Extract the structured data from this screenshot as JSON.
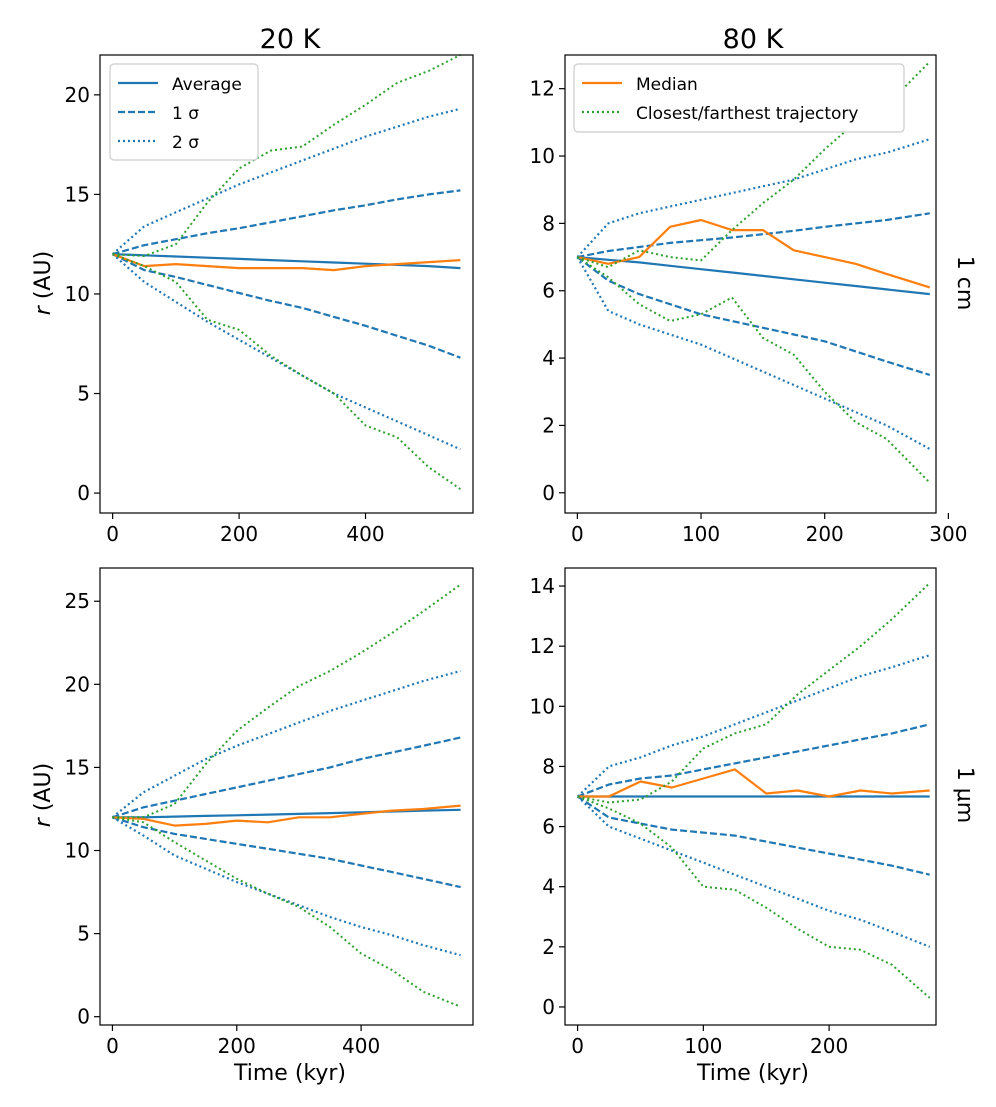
{
  "figure": {
    "column_titles": [
      "20 K",
      "80 K"
    ],
    "row_labels": [
      "1 cm",
      "1 μm"
    ],
    "xlabel": "Time (kyr)",
    "ylabel_prefix": "r",
    "ylabel_suffix": " (AU)"
  },
  "legends": {
    "left": [
      "Average",
      "1 σ",
      "2 σ"
    ],
    "right": [
      "Median",
      "Closest/farthest trajectory"
    ]
  },
  "colors": {
    "blue": "#1f77b4",
    "orange": "#ff7f0e",
    "green": "#2ca02c"
  },
  "chart_data": [
    {
      "type": "line",
      "panel": "20 K / 1 cm",
      "xlim": [
        -20,
        570
      ],
      "ylim": [
        -1,
        22
      ],
      "xticks": [
        0,
        200,
        400
      ],
      "yticks": [
        0,
        5,
        10,
        15,
        20
      ],
      "x": [
        0,
        50,
        100,
        150,
        200,
        250,
        300,
        350,
        400,
        450,
        500,
        550
      ],
      "series": [
        {
          "name": "Average",
          "style": "solid",
          "color": "blue",
          "values": [
            12,
            11.94,
            11.88,
            11.82,
            11.76,
            11.7,
            11.64,
            11.58,
            11.52,
            11.46,
            11.4,
            11.3
          ]
        },
        {
          "name": "1 σ upper",
          "style": "dashed",
          "color": "blue",
          "values": [
            12,
            12.45,
            12.75,
            13.05,
            13.3,
            13.6,
            13.9,
            14.2,
            14.45,
            14.75,
            15.0,
            15.2
          ]
        },
        {
          "name": "1 σ lower",
          "style": "dashed",
          "color": "blue",
          "values": [
            12,
            11.2,
            10.85,
            10.45,
            10.05,
            9.65,
            9.3,
            8.85,
            8.4,
            7.9,
            7.4,
            6.8
          ]
        },
        {
          "name": "2 σ upper",
          "style": "dotted",
          "color": "blue",
          "values": [
            12,
            13.4,
            14.1,
            14.8,
            15.5,
            16.1,
            16.7,
            17.3,
            17.9,
            18.4,
            18.9,
            19.3
          ]
        },
        {
          "name": "2 σ lower",
          "style": "dotted",
          "color": "blue",
          "values": [
            12,
            10.6,
            9.6,
            8.6,
            7.7,
            6.8,
            5.9,
            5.0,
            4.3,
            3.6,
            2.9,
            2.2
          ]
        },
        {
          "name": "Median",
          "style": "solid",
          "color": "orange",
          "values": [
            12,
            11.4,
            11.5,
            11.4,
            11.3,
            11.3,
            11.3,
            11.2,
            11.4,
            11.5,
            11.6,
            11.7
          ]
        },
        {
          "name": "Farthest trajectory",
          "style": "dotted",
          "color": "green",
          "values": [
            12,
            11.9,
            12.5,
            14.6,
            16.3,
            17.2,
            17.4,
            18.5,
            19.5,
            20.6,
            21.2,
            22.0
          ]
        },
        {
          "name": "Closest trajectory",
          "style": "dotted",
          "color": "green",
          "values": [
            12,
            11.4,
            10.6,
            8.7,
            8.2,
            6.9,
            5.9,
            5.0,
            3.4,
            2.8,
            1.3,
            0.2
          ]
        }
      ]
    },
    {
      "type": "line",
      "panel": "80 K / 1 cm",
      "xlim": [
        -10,
        290
      ],
      "ylim": [
        -0.6,
        13
      ],
      "xticks": [
        0,
        100,
        200,
        300
      ],
      "yticks": [
        0,
        2,
        4,
        6,
        8,
        10,
        12
      ],
      "x": [
        0,
        25,
        50,
        75,
        100,
        125,
        150,
        175,
        200,
        225,
        250,
        285
      ],
      "series": [
        {
          "name": "Average",
          "style": "solid",
          "color": "blue",
          "values": [
            7.0,
            6.92,
            6.84,
            6.74,
            6.64,
            6.54,
            6.44,
            6.34,
            6.24,
            6.14,
            6.04,
            5.9
          ]
        },
        {
          "name": "1 σ upper",
          "style": "dashed",
          "color": "blue",
          "values": [
            7.0,
            7.18,
            7.3,
            7.42,
            7.5,
            7.58,
            7.68,
            7.78,
            7.9,
            8.0,
            8.1,
            8.3
          ]
        },
        {
          "name": "1 σ lower",
          "style": "dashed",
          "color": "blue",
          "values": [
            7.0,
            6.3,
            5.9,
            5.6,
            5.3,
            5.1,
            4.9,
            4.7,
            4.5,
            4.2,
            3.9,
            3.5
          ]
        },
        {
          "name": "2 σ upper",
          "style": "dotted",
          "color": "blue",
          "values": [
            7.0,
            8.0,
            8.3,
            8.5,
            8.7,
            8.9,
            9.1,
            9.3,
            9.6,
            9.9,
            10.1,
            10.5
          ]
        },
        {
          "name": "2 σ lower",
          "style": "dotted",
          "color": "blue",
          "values": [
            7.0,
            5.4,
            5.0,
            4.7,
            4.4,
            4.0,
            3.6,
            3.2,
            2.8,
            2.4,
            2.0,
            1.3
          ]
        },
        {
          "name": "Median",
          "style": "solid",
          "color": "orange",
          "values": [
            7.0,
            6.8,
            7.0,
            7.9,
            8.1,
            7.8,
            7.8,
            7.2,
            7.0,
            6.8,
            6.5,
            6.1
          ]
        },
        {
          "name": "Farthest trajectory",
          "style": "dotted",
          "color": "green",
          "values": [
            7.0,
            6.7,
            7.2,
            7.0,
            6.9,
            7.8,
            8.6,
            9.3,
            10.2,
            11.0,
            11.5,
            12.8
          ]
        },
        {
          "name": "Closest trajectory",
          "style": "dotted",
          "color": "green",
          "values": [
            7.0,
            6.4,
            5.6,
            5.1,
            5.3,
            5.8,
            4.6,
            4.1,
            3.0,
            2.1,
            1.6,
            0.3
          ]
        }
      ]
    },
    {
      "type": "line",
      "panel": "20 K / 1 μm",
      "xlim": [
        -20,
        580
      ],
      "ylim": [
        -0.5,
        27
      ],
      "xticks": [
        0,
        200,
        400
      ],
      "yticks": [
        0,
        5,
        10,
        15,
        20,
        25
      ],
      "x": [
        0,
        50,
        100,
        150,
        200,
        250,
        300,
        350,
        400,
        450,
        500,
        560
      ],
      "series": [
        {
          "name": "Average",
          "style": "solid",
          "color": "blue",
          "values": [
            12,
            12.0,
            12.04,
            12.08,
            12.12,
            12.16,
            12.2,
            12.25,
            12.3,
            12.35,
            12.4,
            12.45
          ]
        },
        {
          "name": "1 σ upper",
          "style": "dashed",
          "color": "blue",
          "values": [
            12,
            12.6,
            13.0,
            13.4,
            13.8,
            14.2,
            14.6,
            15.0,
            15.5,
            15.9,
            16.3,
            16.8
          ]
        },
        {
          "name": "1 σ lower",
          "style": "dashed",
          "color": "blue",
          "values": [
            12,
            11.4,
            11.0,
            10.7,
            10.4,
            10.1,
            9.8,
            9.5,
            9.1,
            8.7,
            8.3,
            7.8
          ]
        },
        {
          "name": "2 σ upper",
          "style": "dotted",
          "color": "blue",
          "values": [
            12,
            13.5,
            14.5,
            15.5,
            16.3,
            17.0,
            17.7,
            18.4,
            19.0,
            19.6,
            20.2,
            20.8
          ]
        },
        {
          "name": "2 σ lower",
          "style": "dotted",
          "color": "blue",
          "values": [
            12,
            10.9,
            9.7,
            8.9,
            8.1,
            7.4,
            6.7,
            6.0,
            5.4,
            4.9,
            4.3,
            3.7
          ]
        },
        {
          "name": "Median",
          "style": "solid",
          "color": "orange",
          "values": [
            12,
            11.9,
            11.5,
            11.6,
            11.8,
            11.7,
            12.0,
            12.0,
            12.2,
            12.4,
            12.5,
            12.7
          ]
        },
        {
          "name": "Farthest trajectory",
          "style": "dotted",
          "color": "green",
          "values": [
            12,
            12.0,
            12.8,
            15.2,
            17.2,
            18.6,
            19.9,
            20.8,
            21.9,
            23.1,
            24.4,
            26.0
          ]
        },
        {
          "name": "Closest trajectory",
          "style": "dotted",
          "color": "green",
          "values": [
            12,
            11.7,
            10.5,
            9.4,
            8.3,
            7.4,
            6.6,
            5.4,
            3.8,
            2.8,
            1.5,
            0.6
          ]
        }
      ]
    },
    {
      "type": "line",
      "panel": "80 K / 1 μm",
      "xlim": [
        -10,
        285
      ],
      "ylim": [
        -0.6,
        14.6
      ],
      "xticks": [
        0,
        100,
        200
      ],
      "yticks": [
        0,
        2,
        4,
        6,
        8,
        10,
        12,
        14
      ],
      "x": [
        0,
        25,
        50,
        75,
        100,
        125,
        150,
        175,
        200,
        225,
        250,
        280
      ],
      "series": [
        {
          "name": "Average",
          "style": "solid",
          "color": "blue",
          "values": [
            7.0,
            7.0,
            7.0,
            7.0,
            7.0,
            7.0,
            7.0,
            7.0,
            7.0,
            7.0,
            7.0,
            7.0
          ]
        },
        {
          "name": "1 σ upper",
          "style": "dashed",
          "color": "blue",
          "values": [
            7.0,
            7.4,
            7.6,
            7.7,
            7.9,
            8.1,
            8.3,
            8.5,
            8.7,
            8.9,
            9.1,
            9.4
          ]
        },
        {
          "name": "1 σ lower",
          "style": "dashed",
          "color": "blue",
          "values": [
            7.0,
            6.3,
            6.1,
            5.9,
            5.8,
            5.7,
            5.5,
            5.3,
            5.1,
            4.9,
            4.7,
            4.4
          ]
        },
        {
          "name": "2 σ upper",
          "style": "dotted",
          "color": "blue",
          "values": [
            7.0,
            8.0,
            8.3,
            8.7,
            9.0,
            9.4,
            9.8,
            10.2,
            10.6,
            11.0,
            11.3,
            11.7
          ]
        },
        {
          "name": "2 σ lower",
          "style": "dotted",
          "color": "blue",
          "values": [
            7.0,
            6.0,
            5.6,
            5.2,
            4.8,
            4.4,
            4.0,
            3.6,
            3.2,
            2.9,
            2.5,
            2.0
          ]
        },
        {
          "name": "Median",
          "style": "solid",
          "color": "orange",
          "values": [
            7.0,
            7.0,
            7.5,
            7.3,
            7.6,
            7.9,
            7.1,
            7.2,
            7.0,
            7.2,
            7.1,
            7.2
          ]
        },
        {
          "name": "Farthest trajectory",
          "style": "dotted",
          "color": "green",
          "values": [
            7.0,
            6.8,
            6.9,
            7.5,
            8.6,
            9.1,
            9.4,
            10.4,
            11.2,
            12.0,
            12.9,
            14.1
          ]
        },
        {
          "name": "Closest trajectory",
          "style": "dotted",
          "color": "green",
          "values": [
            7.0,
            6.6,
            6.1,
            5.3,
            4.0,
            3.9,
            3.3,
            2.6,
            2.0,
            1.9,
            1.4,
            0.3
          ]
        }
      ]
    }
  ]
}
